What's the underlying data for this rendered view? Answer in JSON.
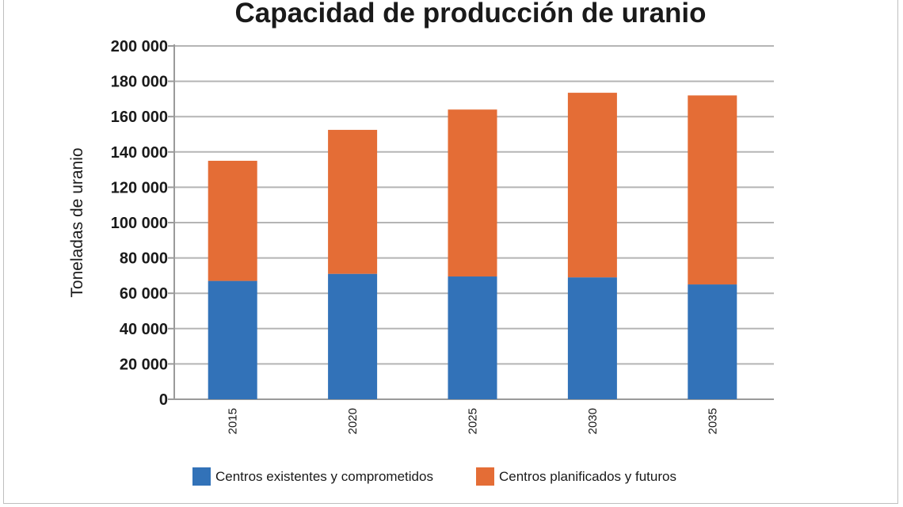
{
  "chart_data": {
    "type": "bar",
    "stacked": true,
    "title": "Capacidad de producción de uranio",
    "xlabel": "",
    "ylabel": "Toneladas de uranio",
    "categories": [
      "2015",
      "2020",
      "2025",
      "2030",
      "2035"
    ],
    "ylim": [
      0,
      200000
    ],
    "yticks": [
      0,
      20000,
      40000,
      60000,
      80000,
      100000,
      120000,
      140000,
      160000,
      180000,
      200000
    ],
    "ytick_labels": [
      "0",
      "20 000",
      "40 000",
      "60 000",
      "80 000",
      "100 000",
      "120 000",
      "140 000",
      "160 000",
      "180 000",
      "200 000"
    ],
    "grid": true,
    "legend_position": "bottom",
    "series": [
      {
        "name": "Centros existentes y comprometidos",
        "color": "#3272b8",
        "values": [
          67000,
          71000,
          69500,
          69000,
          65000
        ]
      },
      {
        "name": "Centros planificados y futuros",
        "color": "#e46d36",
        "values": [
          68000,
          81500,
          94500,
          104500,
          107000
        ]
      }
    ]
  }
}
